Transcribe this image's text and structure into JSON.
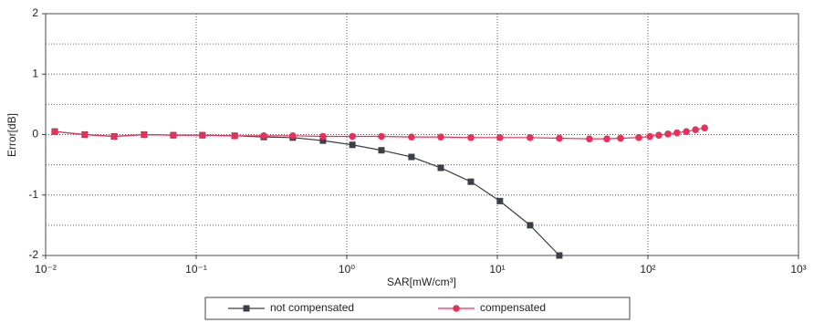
{
  "chart_data": {
    "type": "line",
    "xlabel": "SAR[mW/cm³]",
    "ylabel": "Error[dB]",
    "xscale": "log",
    "xlim": [
      0.01,
      1000
    ],
    "xticks": [
      {
        "value": 0.01,
        "label": "10⁻²"
      },
      {
        "value": 0.1,
        "label": "10⁻¹"
      },
      {
        "value": 1,
        "label": "10⁰"
      },
      {
        "value": 10,
        "label": "10¹"
      },
      {
        "value": 100,
        "label": "10²"
      },
      {
        "value": 1000,
        "label": "10³"
      }
    ],
    "ylim": [
      -2,
      2
    ],
    "yticks": [
      -2,
      -1,
      0,
      1,
      2
    ],
    "yminor": [
      -1.5,
      -0.5,
      0.5,
      1.5
    ],
    "grid": true,
    "legend": "bottom",
    "series": [
      {
        "name": "not compensated",
        "color": "#3a3f48",
        "marker": "square",
        "x": [
          0.0115,
          0.0182,
          0.0285,
          0.0451,
          0.0705,
          0.11,
          0.18,
          0.281,
          0.438,
          0.695,
          1.09,
          1.7,
          2.69,
          4.21,
          6.67,
          10.4,
          16.5,
          25.8
        ],
        "values": [
          0.05,
          0,
          -0.03,
          0,
          -0.01,
          -0.01,
          -0.02,
          -0.04,
          -0.05,
          -0.1,
          -0.17,
          -0.26,
          -0.37,
          -0.55,
          -0.78,
          -1.1,
          -1.5,
          -2.0
        ]
      },
      {
        "name": "compensated",
        "color": "#e8305a",
        "marker": "circle",
        "x": [
          0.0115,
          0.0182,
          0.0285,
          0.0451,
          0.0705,
          0.11,
          0.18,
          0.281,
          0.438,
          0.695,
          1.09,
          1.7,
          2.69,
          4.21,
          6.67,
          10.4,
          16.5,
          25.8,
          40.9,
          53.4,
          65.8,
          86.9,
          103,
          118,
          136,
          156,
          180,
          207,
          238
        ],
        "values": [
          0.05,
          0,
          -0.03,
          0,
          -0.01,
          -0.01,
          -0.02,
          -0.02,
          -0.02,
          -0.03,
          -0.03,
          -0.03,
          -0.04,
          -0.04,
          -0.05,
          -0.05,
          -0.05,
          -0.06,
          -0.07,
          -0.07,
          -0.06,
          -0.05,
          -0.03,
          -0.01,
          0.01,
          0.03,
          0.05,
          0.08,
          0.11
        ]
      }
    ]
  }
}
